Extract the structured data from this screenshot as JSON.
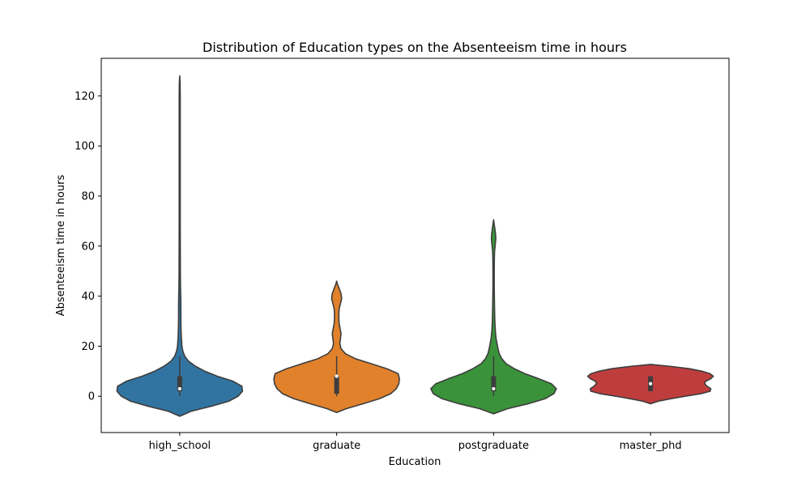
{
  "chart_data": {
    "type": "violin",
    "title": "Distribution of Education types on the Absenteeism time in hours",
    "xlabel": "Education",
    "ylabel": "Absenteeism time in hours",
    "categories": [
      "high_school",
      "graduate",
      "postgraduate",
      "master_phd"
    ],
    "ylim": [
      -14.5,
      135
    ],
    "yticks": [
      0,
      20,
      40,
      60,
      80,
      100,
      120
    ],
    "grid": false,
    "colors": [
      "#3274a1",
      "#e1812c",
      "#3a923a",
      "#c03d3e"
    ],
    "outline_color": "#3d3d3d",
    "violins": [
      {
        "category": "high_school",
        "median": 3,
        "q1": 2,
        "q3": 8,
        "whisker_low": 0,
        "whisker_high": 16,
        "profile": [
          [
            -8,
            0.0
          ],
          [
            -6,
            0.18
          ],
          [
            -4,
            0.5
          ],
          [
            -2,
            0.78
          ],
          [
            0,
            0.93
          ],
          [
            2,
            1.0
          ],
          [
            4,
            0.99
          ],
          [
            6,
            0.85
          ],
          [
            8,
            0.6
          ],
          [
            10,
            0.4
          ],
          [
            12,
            0.25
          ],
          [
            14,
            0.14
          ],
          [
            16,
            0.08
          ],
          [
            18,
            0.05
          ],
          [
            20,
            0.035
          ],
          [
            24,
            0.025
          ],
          [
            28,
            0.02
          ],
          [
            32,
            0.018
          ],
          [
            36,
            0.018
          ],
          [
            40,
            0.016
          ],
          [
            44,
            0.012
          ],
          [
            50,
            0.01
          ],
          [
            60,
            0.009
          ],
          [
            70,
            0.008
          ],
          [
            80,
            0.008
          ],
          [
            90,
            0.008
          ],
          [
            100,
            0.008
          ],
          [
            110,
            0.008
          ],
          [
            120,
            0.008
          ],
          [
            125,
            0.006
          ],
          [
            128,
            0.0
          ]
        ]
      },
      {
        "category": "graduate",
        "median": 8,
        "q1": 1,
        "q3": 8,
        "whisker_low": 0,
        "whisker_high": 16,
        "profile": [
          [
            -6.5,
            0.0
          ],
          [
            -5,
            0.15
          ],
          [
            -3,
            0.42
          ],
          [
            -1,
            0.68
          ],
          [
            1,
            0.86
          ],
          [
            3,
            0.95
          ],
          [
            5,
            0.99
          ],
          [
            7,
            1.0
          ],
          [
            9,
            0.98
          ],
          [
            11,
            0.8
          ],
          [
            13,
            0.55
          ],
          [
            15,
            0.3
          ],
          [
            17,
            0.14
          ],
          [
            19,
            0.07
          ],
          [
            21,
            0.05
          ],
          [
            23,
            0.06
          ],
          [
            25,
            0.07
          ],
          [
            27,
            0.055
          ],
          [
            29,
            0.04
          ],
          [
            31,
            0.035
          ],
          [
            33,
            0.035
          ],
          [
            35,
            0.04
          ],
          [
            37,
            0.06
          ],
          [
            39,
            0.08
          ],
          [
            41,
            0.07
          ],
          [
            43,
            0.04
          ],
          [
            45,
            0.01
          ],
          [
            46,
            0.0
          ]
        ]
      },
      {
        "category": "postgraduate",
        "median": 3,
        "q1": 2,
        "q3": 8,
        "whisker_low": 0,
        "whisker_high": 16,
        "profile": [
          [
            -7,
            0.0
          ],
          [
            -5,
            0.22
          ],
          [
            -3,
            0.55
          ],
          [
            -1,
            0.82
          ],
          [
            1,
            0.96
          ],
          [
            3,
            1.0
          ],
          [
            5,
            0.92
          ],
          [
            7,
            0.72
          ],
          [
            9,
            0.5
          ],
          [
            11,
            0.33
          ],
          [
            13,
            0.2
          ],
          [
            15,
            0.13
          ],
          [
            17,
            0.09
          ],
          [
            19,
            0.07
          ],
          [
            21,
            0.055
          ],
          [
            23,
            0.04
          ],
          [
            26,
            0.028
          ],
          [
            30,
            0.02
          ],
          [
            35,
            0.015
          ],
          [
            40,
            0.012
          ],
          [
            45,
            0.01
          ],
          [
            50,
            0.01
          ],
          [
            55,
            0.012
          ],
          [
            58,
            0.016
          ],
          [
            61,
            0.028
          ],
          [
            63,
            0.035
          ],
          [
            65,
            0.03
          ],
          [
            67,
            0.02
          ],
          [
            69,
            0.008
          ],
          [
            70.5,
            0.0
          ]
        ]
      },
      {
        "category": "master_phd",
        "median": 5,
        "q1": 2,
        "q3": 8,
        "whisker_low": 2,
        "whisker_high": 8,
        "profile": [
          [
            -3,
            0.0
          ],
          [
            -2,
            0.12
          ],
          [
            -1,
            0.32
          ],
          [
            0,
            0.55
          ],
          [
            1,
            0.8
          ],
          [
            2,
            0.95
          ],
          [
            3,
            0.96
          ],
          [
            4,
            0.9
          ],
          [
            5,
            0.86
          ],
          [
            6,
            0.88
          ],
          [
            7,
            0.96
          ],
          [
            8,
            1.0
          ],
          [
            9,
            0.95
          ],
          [
            10,
            0.82
          ],
          [
            11,
            0.62
          ],
          [
            12,
            0.3
          ],
          [
            12.7,
            0.0
          ]
        ]
      }
    ]
  }
}
